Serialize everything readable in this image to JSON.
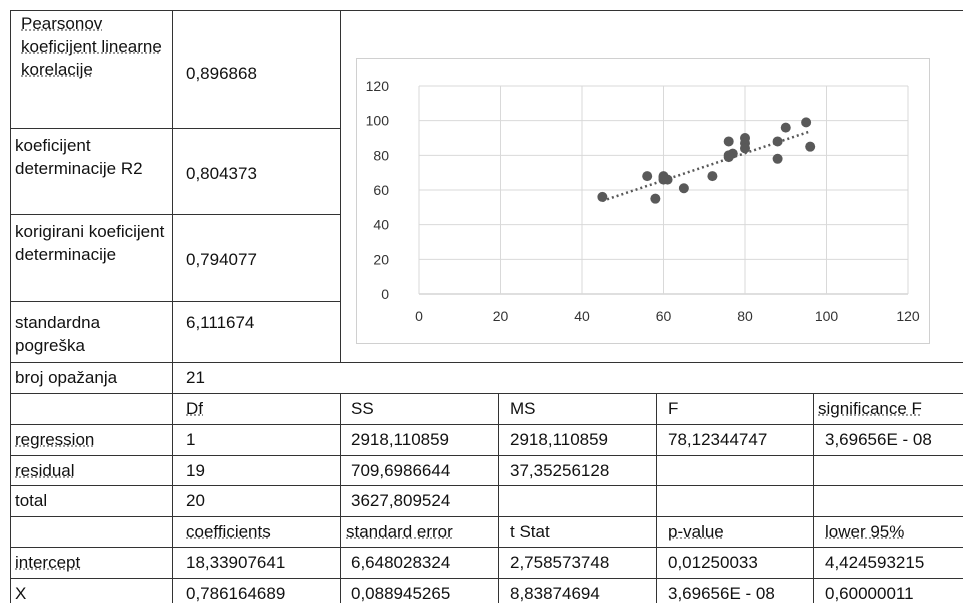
{
  "stats": [
    {
      "label": "Pearsonov koeficijent linearne korelacije",
      "value": "0,896868"
    },
    {
      "label": "koeficijent determinacije R2",
      "value": "0,804373"
    },
    {
      "label": "korigirani koeficijent determinacije",
      "value": "0,794077"
    },
    {
      "label": "standardna pogreška",
      "value": "6,111674"
    },
    {
      "label": "broj opažanja",
      "value": "21"
    }
  ],
  "anova": {
    "headers": [
      "",
      "Df",
      "SS",
      "MS",
      "F",
      "significance F"
    ],
    "rows": [
      [
        "regression",
        "1",
        "2918,110859",
        "2918,110859",
        "78,12344747",
        "3,69656E - 08"
      ],
      [
        "residual",
        "19",
        "709,6986644",
        "37,35256128",
        "",
        ""
      ],
      [
        "total",
        "20",
        "3627,809524",
        "",
        "",
        ""
      ]
    ]
  },
  "coef": {
    "headers": [
      "",
      "coefficients",
      "standard error",
      "t Stat",
      "p-value",
      "lower 95%"
    ],
    "rows": [
      [
        "intercept",
        "18,33907641",
        "6,648028324",
        "2,758573748",
        "0,01250033",
        "4,424593215"
      ],
      [
        "X",
        "0,786164689",
        "0,088945265",
        "8,83874694",
        "3,69656E - 08",
        "0,60000011"
      ]
    ]
  },
  "chart_data": {
    "type": "scatter",
    "xlim": [
      0,
      120
    ],
    "ylim": [
      0,
      120
    ],
    "xticks": [
      "0",
      "20",
      "40",
      "60",
      "80",
      "100",
      "120"
    ],
    "yticks": [
      "0",
      "20",
      "40",
      "60",
      "80",
      "100",
      "120"
    ],
    "grid": true,
    "trendline": {
      "intercept": 18.339,
      "slope": 0.7862,
      "x_range": [
        45,
        96
      ],
      "color": "#595959"
    },
    "marker_color": "#595959",
    "points": [
      {
        "x": 45,
        "y": 56
      },
      {
        "x": 56,
        "y": 68
      },
      {
        "x": 58,
        "y": 55
      },
      {
        "x": 60,
        "y": 68
      },
      {
        "x": 60,
        "y": 66
      },
      {
        "x": 61,
        "y": 66
      },
      {
        "x": 65,
        "y": 61
      },
      {
        "x": 72,
        "y": 68
      },
      {
        "x": 76,
        "y": 79
      },
      {
        "x": 76,
        "y": 88
      },
      {
        "x": 77,
        "y": 81
      },
      {
        "x": 80,
        "y": 90
      },
      {
        "x": 80,
        "y": 87
      },
      {
        "x": 80,
        "y": 84
      },
      {
        "x": 88,
        "y": 78
      },
      {
        "x": 88,
        "y": 88
      },
      {
        "x": 90,
        "y": 96
      },
      {
        "x": 95,
        "y": 99
      },
      {
        "x": 96,
        "y": 85
      },
      {
        "x": 60,
        "y": 67
      },
      {
        "x": 76,
        "y": 80
      }
    ]
  }
}
